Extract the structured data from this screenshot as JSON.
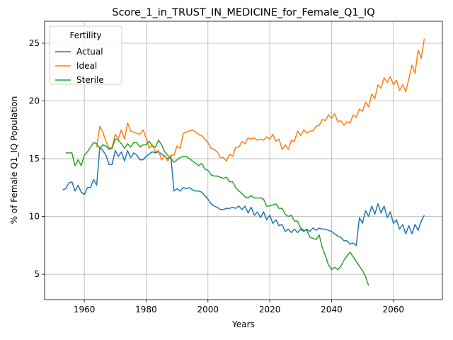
{
  "chart_data": {
    "type": "line",
    "title": "Score_1_in_TRUST_IN_MEDICINE_for_Female_Q1_IQ",
    "xlabel": "Years",
    "ylabel": "% of Female Q1_IQ Population",
    "legend_title": "Fertility",
    "legend": "upper left",
    "grid": true,
    "xlim": [
      1947.15,
      2075.85
    ],
    "ylim": [
      2.8,
      26.9
    ],
    "xticks": [
      1960,
      1980,
      2000,
      2020,
      2040,
      2060
    ],
    "yticks": [
      5,
      10,
      15,
      20,
      25
    ],
    "x": [
      1953,
      1954,
      1955,
      1956,
      1957,
      1958,
      1959,
      1960,
      1961,
      1962,
      1963,
      1964,
      1965,
      1966,
      1967,
      1968,
      1969,
      1970,
      1971,
      1972,
      1973,
      1974,
      1975,
      1976,
      1977,
      1978,
      1979,
      1980,
      1981,
      1982,
      1983,
      1984,
      1985,
      1986,
      1987,
      1988,
      1989,
      1990,
      1991,
      1992,
      1993,
      1994,
      1995,
      1996,
      1997,
      1998,
      1999,
      2000,
      2001,
      2002,
      2003,
      2004,
      2005,
      2006,
      2007,
      2008,
      2009,
      2010,
      2011,
      2012,
      2013,
      2014,
      2015,
      2016,
      2017,
      2018,
      2019,
      2020,
      2021,
      2022,
      2023,
      2024,
      2025,
      2026,
      2027,
      2028,
      2029,
      2030,
      2031,
      2032,
      2033,
      2034,
      2035,
      2036,
      2037,
      2038,
      2039,
      2040,
      2041,
      2042,
      2043,
      2044,
      2045,
      2046,
      2047,
      2048,
      2049,
      2050,
      2051,
      2052,
      2053,
      2054,
      2055,
      2056,
      2057,
      2058,
      2059,
      2060,
      2061,
      2062,
      2063,
      2064,
      2065,
      2066,
      2067,
      2068,
      2069,
      2070
    ],
    "series": [
      {
        "name": "Actual",
        "color": "#1f77b4",
        "values": [
          12.3,
          12.4,
          12.9,
          13.0,
          12.2,
          12.7,
          12.1,
          11.9,
          12.5,
          12.5,
          13.2,
          12.7,
          16.0,
          15.7,
          15.3,
          14.5,
          14.5,
          15.7,
          15.2,
          15.6,
          14.8,
          15.7,
          15.1,
          15.5,
          15.3,
          14.9,
          14.9,
          15.2,
          15.4,
          15.6,
          15.5,
          15.6,
          15.4,
          15.2,
          15.0,
          15.2,
          12.2,
          12.4,
          12.2,
          12.5,
          12.4,
          12.5,
          12.3,
          12.2,
          12.2,
          12.1,
          11.8,
          11.5,
          11.1,
          10.9,
          10.8,
          10.6,
          10.6,
          10.7,
          10.7,
          10.8,
          10.7,
          10.9,
          10.6,
          10.9,
          10.3,
          10.8,
          10.1,
          10.4,
          9.9,
          10.4,
          9.7,
          10.1,
          9.4,
          9.7,
          9.2,
          9.3,
          8.7,
          8.9,
          8.6,
          8.9,
          8.6,
          8.9,
          8.7,
          8.9,
          8.7,
          9.0,
          8.8,
          9.0,
          8.9,
          8.9,
          8.8,
          8.7,
          8.5,
          8.3,
          8.2,
          7.9,
          7.9,
          7.6,
          7.7,
          7.5,
          9.9,
          9.4,
          10.5,
          10.0,
          10.9,
          10.2,
          11.1,
          10.3,
          10.9,
          9.9,
          10.4,
          9.4,
          9.7,
          8.9,
          9.3,
          8.5,
          9.2,
          8.5,
          9.3,
          8.8,
          9.6,
          10.1
        ]
      },
      {
        "name": "Ideal",
        "color": "#ff7f0e",
        "values": [
          null,
          null,
          null,
          null,
          null,
          null,
          null,
          null,
          null,
          null,
          null,
          16.0,
          17.8,
          17.3,
          16.5,
          15.9,
          16.0,
          17.1,
          16.7,
          17.5,
          16.7,
          18.1,
          17.4,
          17.3,
          17.2,
          17.1,
          17.5,
          16.8,
          15.9,
          16.2,
          15.6,
          15.7,
          14.9,
          15.3,
          14.8,
          15.3,
          15.3,
          16.1,
          15.9,
          17.2,
          17.3,
          17.4,
          17.5,
          17.3,
          17.1,
          17.0,
          16.7,
          16.4,
          15.9,
          15.8,
          15.6,
          15.1,
          15.1,
          14.8,
          15.4,
          15.2,
          16.0,
          16.0,
          16.5,
          16.3,
          16.8,
          16.7,
          16.8,
          16.6,
          16.7,
          16.6,
          16.9,
          16.7,
          17.1,
          16.5,
          16.7,
          15.8,
          16.2,
          15.8,
          16.6,
          16.5,
          17.4,
          17.0,
          17.5,
          17.2,
          17.4,
          17.4,
          17.8,
          17.9,
          18.4,
          18.3,
          18.8,
          18.5,
          18.9,
          18.2,
          18.3,
          17.9,
          18.2,
          18.1,
          18.8,
          18.6,
          19.3,
          19.1,
          19.9,
          19.5,
          20.6,
          20.2,
          21.4,
          21.1,
          22.0,
          21.6,
          22.1,
          21.4,
          21.8,
          20.9,
          21.4,
          20.8,
          21.9,
          23.1,
          22.4,
          24.4,
          23.7,
          25.4
        ]
      },
      {
        "name": "Sterile",
        "color": "#2ca02c",
        "values": [
          null,
          15.5,
          15.5,
          15.5,
          14.4,
          14.9,
          14.4,
          15.3,
          15.6,
          16.0,
          16.4,
          16.3,
          15.9,
          16.2,
          16.1,
          15.8,
          15.9,
          16.7,
          16.6,
          16.3,
          15.9,
          16.3,
          16.0,
          16.4,
          16.4,
          16.0,
          16.2,
          16.2,
          16.5,
          16.1,
          16.0,
          16.6,
          16.2,
          15.6,
          15.3,
          15.0,
          14.7,
          14.9,
          15.1,
          15.2,
          15.2,
          15.0,
          14.8,
          14.6,
          14.4,
          14.6,
          14.1,
          14.0,
          13.6,
          13.5,
          13.5,
          13.4,
          13.3,
          13.4,
          13.0,
          13.0,
          12.5,
          12.2,
          12.0,
          11.7,
          11.6,
          11.8,
          11.6,
          11.6,
          11.6,
          11.5,
          10.9,
          10.9,
          11.0,
          11.1,
          10.7,
          10.7,
          10.2,
          10.0,
          10.1,
          9.6,
          9.6,
          9.0,
          8.8,
          8.8,
          8.2,
          8.1,
          8.0,
          8.4,
          7.3,
          6.6,
          5.8,
          5.4,
          5.6,
          5.4,
          5.7,
          6.2,
          6.6,
          6.9,
          6.5,
          6.1,
          5.7,
          5.3,
          4.8,
          4.0,
          null,
          null,
          null,
          null,
          null,
          null,
          null,
          null,
          null,
          null,
          null,
          null,
          null,
          null,
          null,
          null,
          null,
          null
        ]
      }
    ]
  }
}
